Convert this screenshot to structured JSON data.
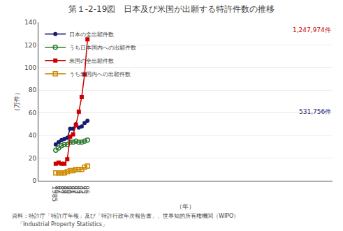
{
  "chart_data": {
    "type": "line",
    "title": "第１-2-19図　日本及び米国が出願する特許件数の推移",
    "ylabel": "（万件）",
    "xlabel": "（年）",
    "categories": [
      "1985",
      "86",
      "87",
      "88",
      "89",
      "90",
      "91",
      "92",
      "93",
      "94",
      "95",
      "96"
    ],
    "series": [
      {
        "name": "日本の全出願件数",
        "color": "#1a1a6e",
        "marker": "circle",
        "values": [
          32,
          34,
          36,
          37,
          38,
          46,
          46,
          50,
          47,
          48,
          51,
          53
        ]
      },
      {
        "name": "うち日本国内への出願件数",
        "color": "#2e7d32",
        "marker": "circle-open",
        "values": [
          27,
          29,
          31,
          32,
          32,
          34,
          34,
          35,
          34,
          34,
          35,
          36
        ]
      },
      {
        "name": "米国の全出願件数",
        "color": "#cc0000",
        "marker": "square",
        "values": [
          15,
          16,
          15,
          15,
          19,
          39,
          41,
          49,
          61,
          74,
          94,
          125
        ]
      },
      {
        "name": "うち米国内への出願件数",
        "color": "#cc8800",
        "marker": "square-open",
        "values": [
          7,
          7,
          7,
          7,
          8,
          9,
          9,
          10,
          10,
          10,
          12,
          13
        ]
      }
    ],
    "annotations": [
      {
        "text": "1,247,974件",
        "x": "96",
        "y": 125,
        "color": "#cc0000"
      },
      {
        "text": "531,756件",
        "x": "96",
        "y": 53,
        "color": "#1a1a6e"
      }
    ],
    "footnotes": [
      "資料：特許庁「特許庁年報」及び「特許行政年次報告書」、世界知的所有権機関（WIPO）",
      "　「Industrial Property Statistics」"
    ],
    "ylim": [
      0,
      140
    ],
    "yticks": [
      0,
      20,
      40,
      60,
      80,
      100,
      120,
      140
    ],
    "grid": true,
    "legend": "upper left"
  }
}
